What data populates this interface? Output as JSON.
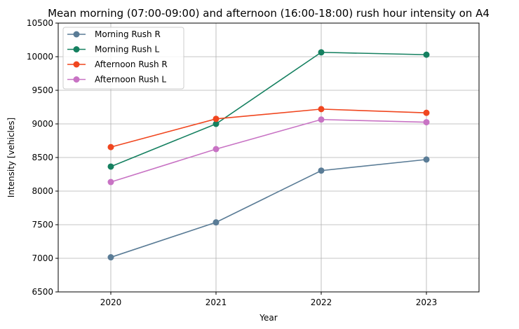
{
  "chart_data": {
    "type": "line",
    "title": "Mean morning (07:00-09:00) and afternoon (16:00-18:00) rush hour intensity on A4",
    "xlabel": "Year",
    "ylabel": "Intensity [vehicles]",
    "categories": [
      "2020",
      "2021",
      "2022",
      "2023"
    ],
    "ylim": [
      6500,
      10500
    ],
    "yticks": [
      "6500",
      "7000",
      "7500",
      "8000",
      "8500",
      "9000",
      "9500",
      "10000",
      "10500"
    ],
    "grid": true,
    "legend_position": "top-left",
    "series": [
      {
        "name": "Morning Rush R",
        "color": "#5a7c96",
        "values": [
          7015,
          7535,
          8305,
          8470
        ]
      },
      {
        "name": "Morning Rush L",
        "color": "#158060",
        "values": [
          8365,
          9000,
          10065,
          10030
        ]
      },
      {
        "name": "Afternoon Rush R",
        "color": "#f0461f",
        "values": [
          8655,
          9075,
          9220,
          9165
        ]
      },
      {
        "name": "Afternoon Rush L",
        "color": "#c873c4",
        "values": [
          8135,
          8625,
          9065,
          9025
        ]
      }
    ]
  }
}
